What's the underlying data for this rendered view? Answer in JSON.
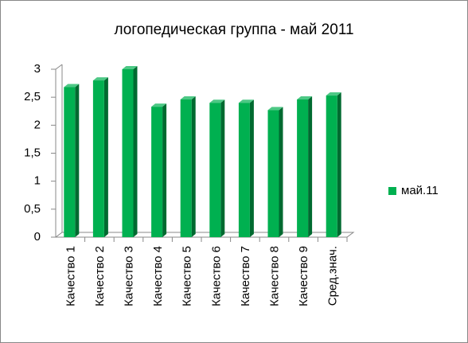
{
  "chart_data": {
    "type": "bar3d",
    "title": "логопедическая группа - май 2011",
    "categories": [
      "Качество 1",
      "Качество 2",
      "Качество 3",
      "Качество 4",
      "Качество 5",
      "Качество 6",
      "Качество 7",
      "Качество 8",
      "Качество 9",
      "Сред.знач."
    ],
    "series": [
      {
        "name": "май.11",
        "color": "#00b050",
        "values": [
          2.68,
          2.8,
          3.0,
          2.33,
          2.46,
          2.4,
          2.4,
          2.27,
          2.46,
          2.53
        ]
      }
    ],
    "ylim": [
      0,
      3
    ],
    "yticks": [
      0,
      {
        "value": 0.5,
        "label": "0,5"
      },
      1,
      {
        "value": 1.5,
        "label": "1,5"
      },
      2,
      {
        "value": 2.5,
        "label": "2,5"
      },
      3
    ],
    "legend": "right"
  }
}
